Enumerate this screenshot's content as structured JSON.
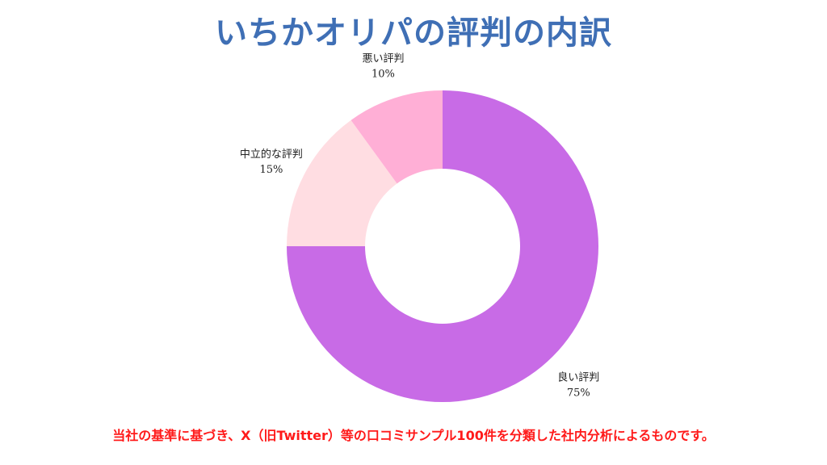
{
  "chart_data": {
    "type": "pie",
    "title": "いちかオリパの評判の内訳",
    "donut": true,
    "slices": [
      {
        "label": "良い評判",
        "value": 75,
        "pct_label": "75%",
        "color": "#c86be6"
      },
      {
        "label": "中立的な評判",
        "value": 15,
        "pct_label": "15%",
        "color": "#ffdde2"
      },
      {
        "label": "悪い評判",
        "value": 10,
        "pct_label": "10%",
        "color": "#ffafd6"
      }
    ]
  },
  "footnote": "当社の基準に基づき、X（旧Twitter）等の口コミサンプル100件を分類した社内分析によるものです。"
}
